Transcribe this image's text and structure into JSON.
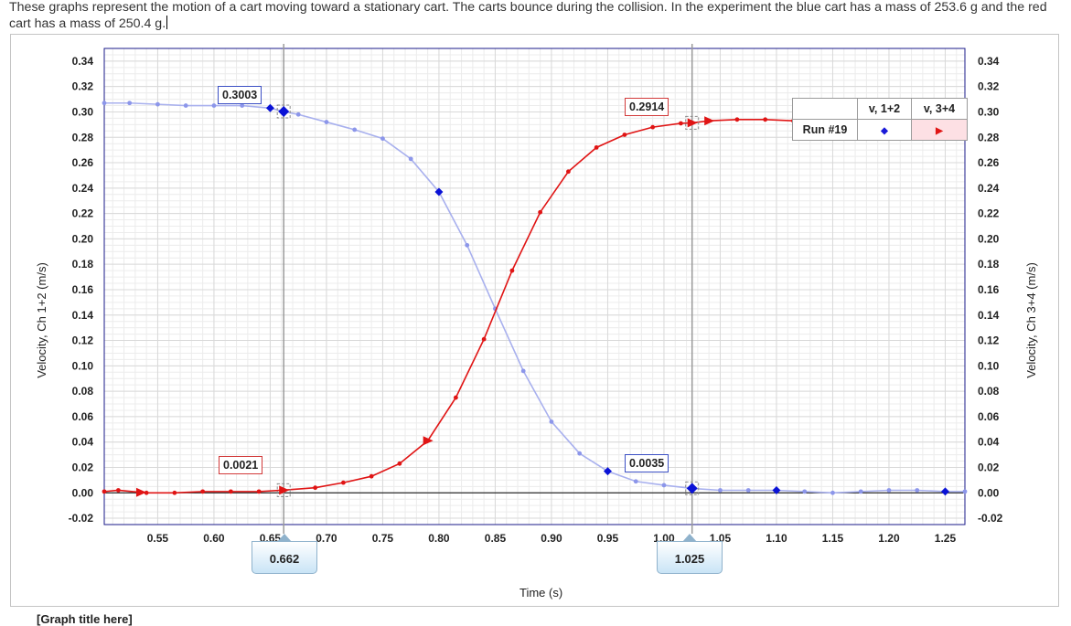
{
  "question": "These graphs represent the motion of a cart moving toward a stationary cart. The carts bounce during the collision. In the experiment the blue cart has a mass of 253.6 g and the red cart has a mass of 250.4 g.",
  "graph_title": "[Graph title here]",
  "colors": {
    "blue_line": "#a8b0ee",
    "blue_point": "#8c96ea",
    "blue_marker": "#0a12d6",
    "red": "#e01414",
    "grid": "#d9d9d9"
  },
  "legend": {
    "header_blue": "v, 1+2",
    "header_red": "v, 3+4",
    "run_label": "Run #19",
    "blue_symbol": "◆",
    "red_symbol": "▶"
  },
  "readouts": {
    "blue_at_cursor1": "0.3003",
    "red_at_cursor1": "0.0021",
    "red_at_cursor2": "0.2914",
    "blue_at_cursor2": "0.0035"
  },
  "cursors": {
    "first": "0.662",
    "second": "1.025"
  },
  "chart_data": {
    "type": "line",
    "xlabel": "Time (s)",
    "ylabel": "Velocity, Ch 1+2 (m/s)",
    "ylabel_right": "Velocity, Ch 3+4 (m/s)",
    "xlim": [
      0.5025,
      1.2675
    ],
    "ylim": [
      -0.025,
      0.35
    ],
    "grid": true,
    "legend_position": "top-right",
    "x_tick_labels": [
      "0.55",
      "0.60",
      "0.65",
      "0.70",
      "0.75",
      "0.80",
      "0.85",
      "0.90",
      "0.95",
      "1.00",
      "1.05",
      "1.10",
      "1.15",
      "1.20",
      "1.25"
    ],
    "x_ticks": [
      0.55,
      0.6,
      0.65,
      0.7,
      0.75,
      0.8,
      0.85,
      0.9,
      0.95,
      1.0,
      1.05,
      1.1,
      1.15,
      1.2,
      1.25
    ],
    "y_tick_labels": [
      "-0.02",
      "0.00",
      "0.02",
      "0.04",
      "0.06",
      "0.08",
      "0.10",
      "0.12",
      "0.14",
      "0.16",
      "0.18",
      "0.20",
      "0.22",
      "0.24",
      "0.26",
      "0.28",
      "0.30",
      "0.32",
      "0.34"
    ],
    "y_ticks": [
      -0.02,
      0,
      0.02,
      0.04,
      0.06,
      0.08,
      0.1,
      0.12,
      0.14,
      0.16,
      0.18,
      0.2,
      0.22,
      0.24,
      0.26,
      0.28,
      0.3,
      0.32,
      0.34
    ],
    "series": [
      {
        "name": "v, 1+2",
        "x": [
          0.5025,
          0.525,
          0.55,
          0.575,
          0.6,
          0.625,
          0.65,
          0.662,
          0.675,
          0.7,
          0.725,
          0.75,
          0.775,
          0.8,
          0.825,
          0.85,
          0.875,
          0.9,
          0.925,
          0.95,
          0.975,
          1.0,
          1.025,
          1.05,
          1.075,
          1.1,
          1.125,
          1.15,
          1.175,
          1.2,
          1.225,
          1.25,
          1.2675
        ],
        "y": [
          0.307,
          0.307,
          0.306,
          0.305,
          0.305,
          0.305,
          0.303,
          0.3003,
          0.298,
          0.292,
          0.286,
          0.279,
          0.263,
          0.237,
          0.195,
          0.145,
          0.096,
          0.056,
          0.031,
          0.017,
          0.009,
          0.006,
          0.0035,
          0.002,
          0.002,
          0.002,
          0.001,
          0.0,
          0.001,
          0.002,
          0.002,
          0.001,
          0.001
        ],
        "markers_x": [
          0.65,
          0.662,
          0.8,
          0.95,
          1.025,
          1.1,
          1.25
        ]
      },
      {
        "name": "v, 3+4",
        "x": [
          0.5025,
          0.515,
          0.54,
          0.565,
          0.59,
          0.615,
          0.64,
          0.662,
          0.69,
          0.715,
          0.74,
          0.765,
          0.79,
          0.815,
          0.84,
          0.865,
          0.89,
          0.915,
          0.94,
          0.965,
          0.99,
          1.015,
          1.025,
          1.04,
          1.065,
          1.09,
          1.115,
          1.14,
          1.165,
          1.19,
          1.215,
          1.24,
          1.2675
        ],
        "y": [
          0.001,
          0.002,
          0.0,
          0.0,
          0.001,
          0.001,
          0.001,
          0.0021,
          0.004,
          0.008,
          0.013,
          0.023,
          0.041,
          0.075,
          0.121,
          0.175,
          0.221,
          0.253,
          0.272,
          0.282,
          0.288,
          0.291,
          0.2914,
          0.293,
          0.294,
          0.294,
          0.293,
          0.293,
          0.294,
          0.294,
          0.294,
          0.293,
          0.29
        ],
        "markers_x": [
          0.535,
          0.662,
          0.79,
          1.025,
          1.04
        ]
      }
    ]
  }
}
